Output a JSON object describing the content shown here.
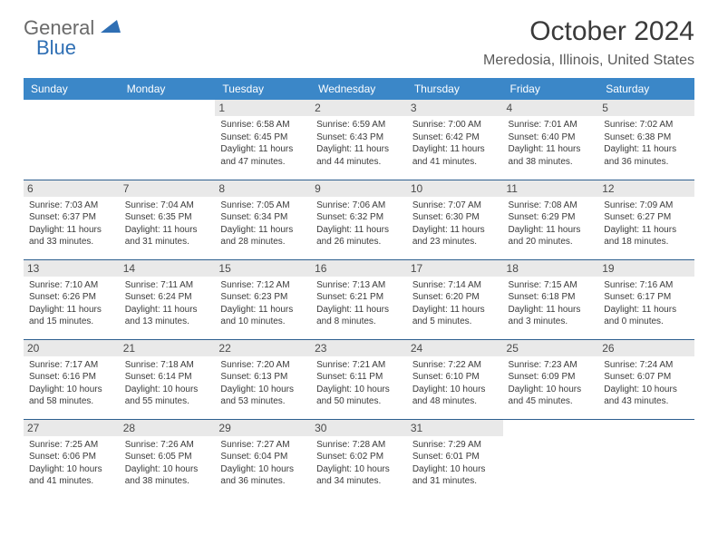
{
  "logo": {
    "part1": "General",
    "part2": "Blue"
  },
  "title": "October 2024",
  "location": "Meredosia, Illinois, United States",
  "colors": {
    "header_bg": "#3b87c8",
    "header_text": "#ffffff",
    "daynum_bg": "#e9e9e9",
    "divider": "#2d5f8f",
    "logo_gray": "#6a6a6a",
    "logo_blue": "#2f6fb4"
  },
  "day_names": [
    "Sunday",
    "Monday",
    "Tuesday",
    "Wednesday",
    "Thursday",
    "Friday",
    "Saturday"
  ],
  "weeks": [
    [
      {
        "n": "",
        "sr": "",
        "ss": "",
        "dl": ""
      },
      {
        "n": "",
        "sr": "",
        "ss": "",
        "dl": ""
      },
      {
        "n": "1",
        "sr": "Sunrise: 6:58 AM",
        "ss": "Sunset: 6:45 PM",
        "dl": "Daylight: 11 hours and 47 minutes."
      },
      {
        "n": "2",
        "sr": "Sunrise: 6:59 AM",
        "ss": "Sunset: 6:43 PM",
        "dl": "Daylight: 11 hours and 44 minutes."
      },
      {
        "n": "3",
        "sr": "Sunrise: 7:00 AM",
        "ss": "Sunset: 6:42 PM",
        "dl": "Daylight: 11 hours and 41 minutes."
      },
      {
        "n": "4",
        "sr": "Sunrise: 7:01 AM",
        "ss": "Sunset: 6:40 PM",
        "dl": "Daylight: 11 hours and 38 minutes."
      },
      {
        "n": "5",
        "sr": "Sunrise: 7:02 AM",
        "ss": "Sunset: 6:38 PM",
        "dl": "Daylight: 11 hours and 36 minutes."
      }
    ],
    [
      {
        "n": "6",
        "sr": "Sunrise: 7:03 AM",
        "ss": "Sunset: 6:37 PM",
        "dl": "Daylight: 11 hours and 33 minutes."
      },
      {
        "n": "7",
        "sr": "Sunrise: 7:04 AM",
        "ss": "Sunset: 6:35 PM",
        "dl": "Daylight: 11 hours and 31 minutes."
      },
      {
        "n": "8",
        "sr": "Sunrise: 7:05 AM",
        "ss": "Sunset: 6:34 PM",
        "dl": "Daylight: 11 hours and 28 minutes."
      },
      {
        "n": "9",
        "sr": "Sunrise: 7:06 AM",
        "ss": "Sunset: 6:32 PM",
        "dl": "Daylight: 11 hours and 26 minutes."
      },
      {
        "n": "10",
        "sr": "Sunrise: 7:07 AM",
        "ss": "Sunset: 6:30 PM",
        "dl": "Daylight: 11 hours and 23 minutes."
      },
      {
        "n": "11",
        "sr": "Sunrise: 7:08 AM",
        "ss": "Sunset: 6:29 PM",
        "dl": "Daylight: 11 hours and 20 minutes."
      },
      {
        "n": "12",
        "sr": "Sunrise: 7:09 AM",
        "ss": "Sunset: 6:27 PM",
        "dl": "Daylight: 11 hours and 18 minutes."
      }
    ],
    [
      {
        "n": "13",
        "sr": "Sunrise: 7:10 AM",
        "ss": "Sunset: 6:26 PM",
        "dl": "Daylight: 11 hours and 15 minutes."
      },
      {
        "n": "14",
        "sr": "Sunrise: 7:11 AM",
        "ss": "Sunset: 6:24 PM",
        "dl": "Daylight: 11 hours and 13 minutes."
      },
      {
        "n": "15",
        "sr": "Sunrise: 7:12 AM",
        "ss": "Sunset: 6:23 PM",
        "dl": "Daylight: 11 hours and 10 minutes."
      },
      {
        "n": "16",
        "sr": "Sunrise: 7:13 AM",
        "ss": "Sunset: 6:21 PM",
        "dl": "Daylight: 11 hours and 8 minutes."
      },
      {
        "n": "17",
        "sr": "Sunrise: 7:14 AM",
        "ss": "Sunset: 6:20 PM",
        "dl": "Daylight: 11 hours and 5 minutes."
      },
      {
        "n": "18",
        "sr": "Sunrise: 7:15 AM",
        "ss": "Sunset: 6:18 PM",
        "dl": "Daylight: 11 hours and 3 minutes."
      },
      {
        "n": "19",
        "sr": "Sunrise: 7:16 AM",
        "ss": "Sunset: 6:17 PM",
        "dl": "Daylight: 11 hours and 0 minutes."
      }
    ],
    [
      {
        "n": "20",
        "sr": "Sunrise: 7:17 AM",
        "ss": "Sunset: 6:16 PM",
        "dl": "Daylight: 10 hours and 58 minutes."
      },
      {
        "n": "21",
        "sr": "Sunrise: 7:18 AM",
        "ss": "Sunset: 6:14 PM",
        "dl": "Daylight: 10 hours and 55 minutes."
      },
      {
        "n": "22",
        "sr": "Sunrise: 7:20 AM",
        "ss": "Sunset: 6:13 PM",
        "dl": "Daylight: 10 hours and 53 minutes."
      },
      {
        "n": "23",
        "sr": "Sunrise: 7:21 AM",
        "ss": "Sunset: 6:11 PM",
        "dl": "Daylight: 10 hours and 50 minutes."
      },
      {
        "n": "24",
        "sr": "Sunrise: 7:22 AM",
        "ss": "Sunset: 6:10 PM",
        "dl": "Daylight: 10 hours and 48 minutes."
      },
      {
        "n": "25",
        "sr": "Sunrise: 7:23 AM",
        "ss": "Sunset: 6:09 PM",
        "dl": "Daylight: 10 hours and 45 minutes."
      },
      {
        "n": "26",
        "sr": "Sunrise: 7:24 AM",
        "ss": "Sunset: 6:07 PM",
        "dl": "Daylight: 10 hours and 43 minutes."
      }
    ],
    [
      {
        "n": "27",
        "sr": "Sunrise: 7:25 AM",
        "ss": "Sunset: 6:06 PM",
        "dl": "Daylight: 10 hours and 41 minutes."
      },
      {
        "n": "28",
        "sr": "Sunrise: 7:26 AM",
        "ss": "Sunset: 6:05 PM",
        "dl": "Daylight: 10 hours and 38 minutes."
      },
      {
        "n": "29",
        "sr": "Sunrise: 7:27 AM",
        "ss": "Sunset: 6:04 PM",
        "dl": "Daylight: 10 hours and 36 minutes."
      },
      {
        "n": "30",
        "sr": "Sunrise: 7:28 AM",
        "ss": "Sunset: 6:02 PM",
        "dl": "Daylight: 10 hours and 34 minutes."
      },
      {
        "n": "31",
        "sr": "Sunrise: 7:29 AM",
        "ss": "Sunset: 6:01 PM",
        "dl": "Daylight: 10 hours and 31 minutes."
      },
      {
        "n": "",
        "sr": "",
        "ss": "",
        "dl": ""
      },
      {
        "n": "",
        "sr": "",
        "ss": "",
        "dl": ""
      }
    ]
  ]
}
